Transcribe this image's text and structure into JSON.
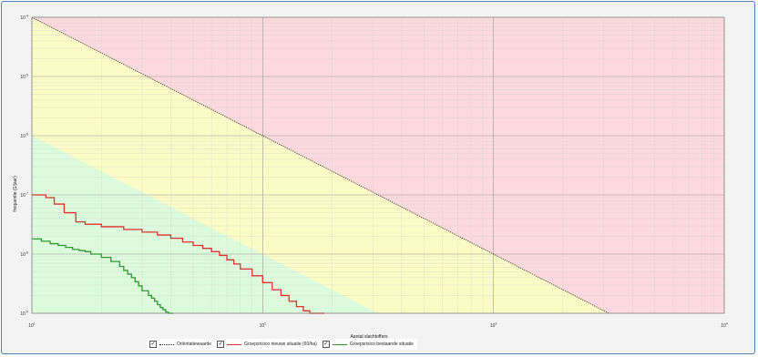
{
  "chart_data": {
    "type": "line",
    "xlabel": "Aantal slachtoffers",
    "ylabel": "frequentie (1/jaar)",
    "xscale": "log",
    "yscale": "log",
    "xlim": [
      10,
      10000
    ],
    "ylim": [
      1e-09,
      0.0001
    ],
    "x_ticks": [
      10,
      100,
      1000,
      10000
    ],
    "x_tick_labels": [
      "10",
      "10",
      "10",
      "10"
    ],
    "x_tick_exponents": [
      "1",
      "2",
      "3",
      "4"
    ],
    "y_ticks": [
      0.0001,
      1e-05,
      1e-06,
      1e-07,
      1e-08,
      1e-09
    ],
    "y_tick_labels": [
      "10",
      "10",
      "10",
      "10",
      "10",
      "10"
    ],
    "y_tick_exponents": [
      "-4",
      "-5",
      "-6",
      "-7",
      "-8",
      "-9"
    ],
    "grid": true,
    "legend_position": "bottom",
    "zones": [
      {
        "region": "above orientatiewaarde",
        "color": "#fcd9dc"
      },
      {
        "region": "between orientatiewaarde and 1/100 of it",
        "color": "#fbfbc6"
      },
      {
        "region": "below 1/100 of orientatiewaarde",
        "color": "#dcfbdc"
      }
    ],
    "series": [
      {
        "name": "Oriëntatiewaarde",
        "color": "#333333",
        "style": "dotted",
        "x": [
          10,
          3162
        ],
        "y": [
          0.0001,
          1e-09
        ]
      },
      {
        "name": "Groepsrisico nieuwe situatie (60/ha)",
        "color": "#e03030",
        "style": "step",
        "x": [
          10,
          11.5,
          12.5,
          13.8,
          15.5,
          17,
          20,
          25,
          30,
          35,
          40,
          45,
          50,
          55,
          60,
          65,
          70,
          75,
          80,
          90,
          100,
          110,
          120,
          130,
          140,
          150,
          160,
          170,
          180,
          185
        ],
        "y": [
          1e-07,
          9e-08,
          7e-08,
          5e-08,
          3.5e-08,
          3.2e-08,
          2.9e-08,
          2.6e-08,
          2.35e-08,
          2.1e-08,
          1.85e-08,
          1.6e-08,
          1.4e-08,
          1.25e-08,
          1.1e-08,
          9.5e-09,
          8e-09,
          6.8e-09,
          5.6e-09,
          4.3e-09,
          3.3e-09,
          2.5e-09,
          2e-09,
          1.6e-09,
          1.3e-09,
          1.1e-09,
          1e-09,
          1e-09,
          1e-09,
          1e-09
        ]
      },
      {
        "name": "Groepsrisico bestaande situatie",
        "color": "#2e9a2e",
        "style": "step",
        "x": [
          10,
          11,
          12,
          13,
          14,
          15,
          16,
          17,
          18,
          20,
          22,
          24,
          25,
          26,
          27,
          28,
          29,
          30,
          32,
          33,
          34,
          35,
          36,
          37,
          38,
          39,
          40,
          41
        ],
        "y": [
          1.8e-08,
          1.65e-08,
          1.5e-08,
          1.4e-08,
          1.3e-08,
          1.2e-08,
          1.15e-08,
          1.1e-08,
          1e-08,
          8.8e-09,
          7.5e-09,
          6.2e-09,
          5.3e-09,
          4.6e-09,
          4e-09,
          3.4e-09,
          2.9e-09,
          2.4e-09,
          2e-09,
          1.8e-09,
          1.6e-09,
          1.4e-09,
          1.25e-09,
          1.15e-09,
          1.05e-09,
          1e-09,
          1e-09,
          1e-09
        ]
      }
    ]
  },
  "legend": {
    "items": [
      {
        "checked": "✓",
        "label": "Oriëntatiewaarde"
      },
      {
        "checked": "✓",
        "label": "Groepsrisico nieuwe situatie (60/ha)"
      },
      {
        "checked": "✓",
        "label": "Groepsrisico bestaande situatie"
      }
    ]
  }
}
